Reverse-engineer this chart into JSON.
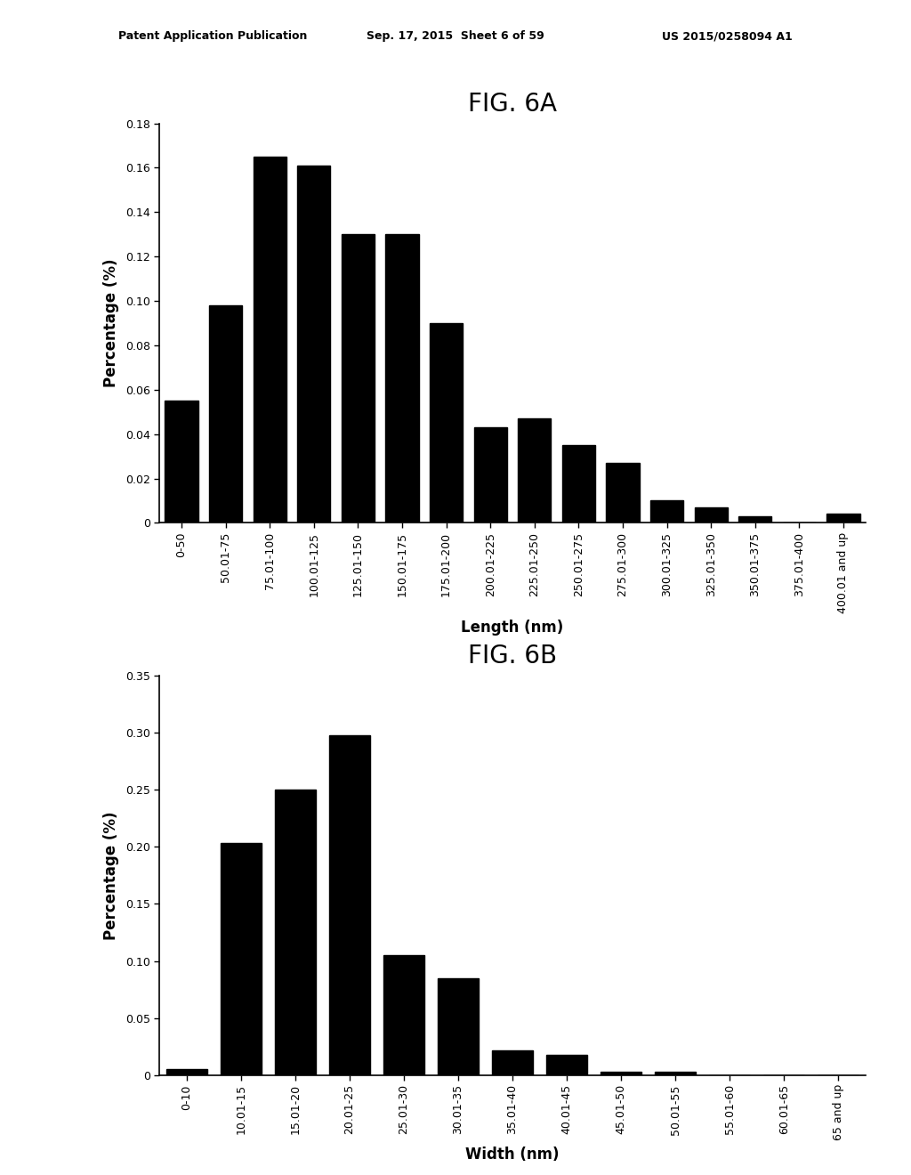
{
  "fig6a": {
    "title": "FIG. 6A",
    "categories": [
      "0-50",
      "50.01-75",
      "75.01-100",
      "100.01-125",
      "125.01-150",
      "150.01-175",
      "175.01-200",
      "200.01-225",
      "225.01-250",
      "250.01-275",
      "275.01-300",
      "300.01-325",
      "325.01-350",
      "350.01-375",
      "375.01-400",
      "400.01 and up"
    ],
    "values": [
      0.055,
      0.098,
      0.165,
      0.161,
      0.13,
      0.13,
      0.09,
      0.043,
      0.047,
      0.035,
      0.027,
      0.01,
      0.007,
      0.003,
      0.0,
      0.004
    ],
    "xlabel": "Length (nm)",
    "ylabel": "Percentage (%)",
    "ylim": [
      0,
      0.18
    ],
    "yticks": [
      0,
      0.02,
      0.04,
      0.06,
      0.08,
      0.1,
      0.12,
      0.14,
      0.16,
      0.18
    ]
  },
  "fig6b": {
    "title": "FIG. 6B",
    "categories": [
      "0-10",
      "10.01-15",
      "15.01-20",
      "20.01-25",
      "25.01-30",
      "30.01-35",
      "35.01-40",
      "40.01-45",
      "45.01-50",
      "50.01-55",
      "55.01-60",
      "60.01-65",
      "65 and up"
    ],
    "values": [
      0.005,
      0.203,
      0.25,
      0.298,
      0.105,
      0.085,
      0.022,
      0.018,
      0.003,
      0.003,
      0.0,
      0.0,
      0.0
    ],
    "xlabel": "Width (nm)",
    "ylabel": "Percentage (%)",
    "ylim": [
      0,
      0.35
    ],
    "yticks": [
      0,
      0.05,
      0.1,
      0.15,
      0.2,
      0.25,
      0.3,
      0.35
    ]
  },
  "header_left": "Patent Application Publication",
  "header_mid": "Sep. 17, 2015  Sheet 6 of 59",
  "header_right": "US 2015/0258094 A1",
  "bar_color": "#000000",
  "background_color": "#ffffff",
  "title_fontsize": 20,
  "label_fontsize": 12,
  "tick_fontsize": 9,
  "header_fontsize": 9
}
